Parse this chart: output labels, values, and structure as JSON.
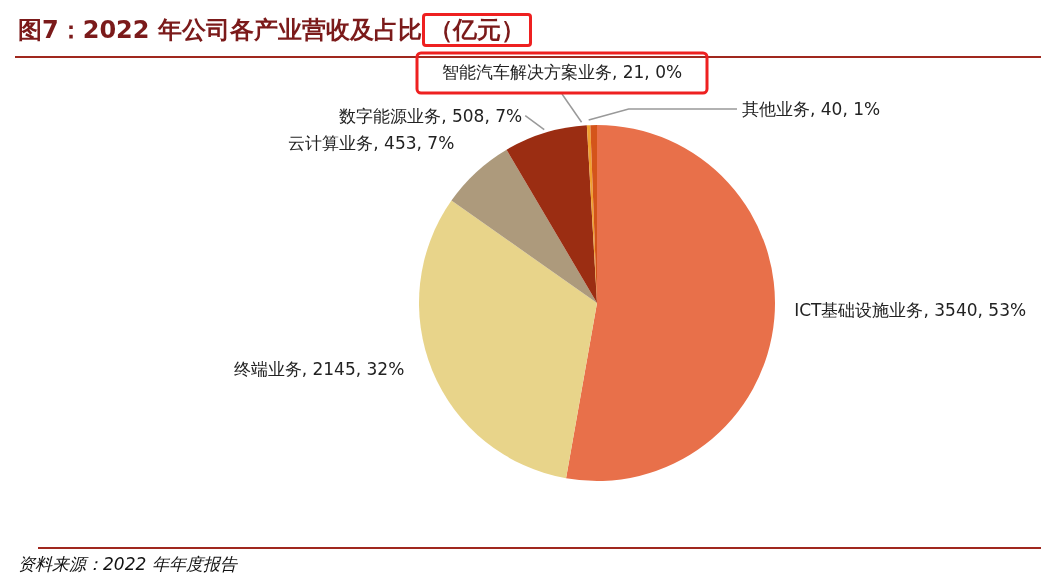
{
  "chart_data": {
    "type": "pie",
    "title": "图7：2022 年公司各产业营收及占比（亿元）",
    "categories": [
      "ICT基础设施业务",
      "终端业务",
      "云计算业务",
      "数字能源业务",
      "智能汽车解决方案业务",
      "其他业务"
    ],
    "values": [
      3540,
      2145,
      453,
      508,
      21,
      40
    ],
    "colors": [
      "#e8704a",
      "#e8d48a",
      "#ad9a7c",
      "#9b2d12",
      "#f0a030",
      "#d4541a"
    ],
    "value_labels": [
      "3540, 53%",
      "2145, 32%",
      "453, 7%",
      "508, 7%",
      "21, 0%",
      "40, 1%"
    ],
    "annotations": [
      "资料来源：2022 年年度报告"
    ],
    "legend": false
  }
}
